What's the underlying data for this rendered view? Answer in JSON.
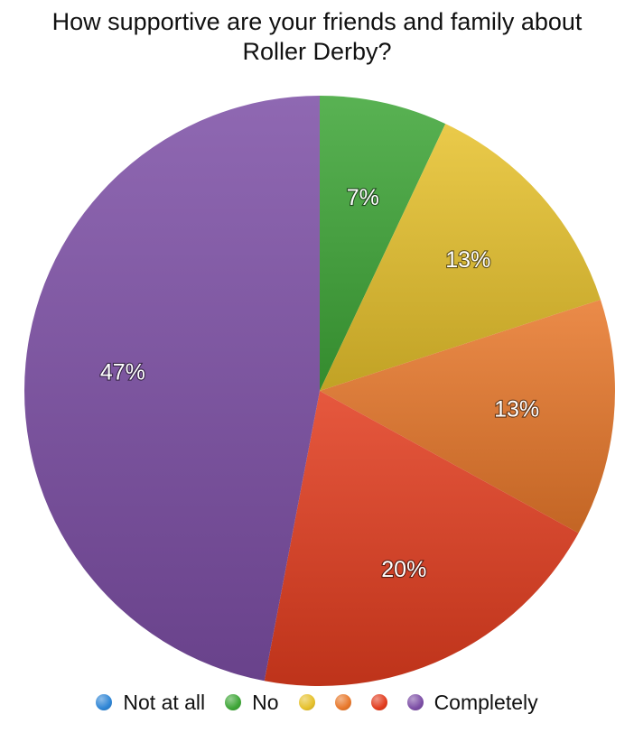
{
  "chart_data": {
    "type": "pie",
    "title": "How supportive are your friends and family about\nRoller Derby?",
    "start_angle_deg": 0,
    "direction": "clockwise",
    "slices": [
      {
        "label": "Not at all",
        "value": 0,
        "display": "",
        "color": "#2f86d6"
      },
      {
        "label": "No",
        "value": 7,
        "display": "7%",
        "color": "#3ea637"
      },
      {
        "label": "",
        "value": 13,
        "display": "13%",
        "color": "#e6c12c"
      },
      {
        "label": "",
        "value": 13,
        "display": "13%",
        "color": "#e8782b"
      },
      {
        "label": "",
        "value": 20,
        "display": "20%",
        "color": "#e23d1f"
      },
      {
        "label": "Completely",
        "value": 47,
        "display": "47%",
        "color": "#7d4fa6"
      }
    ],
    "legend_position": "bottom"
  }
}
